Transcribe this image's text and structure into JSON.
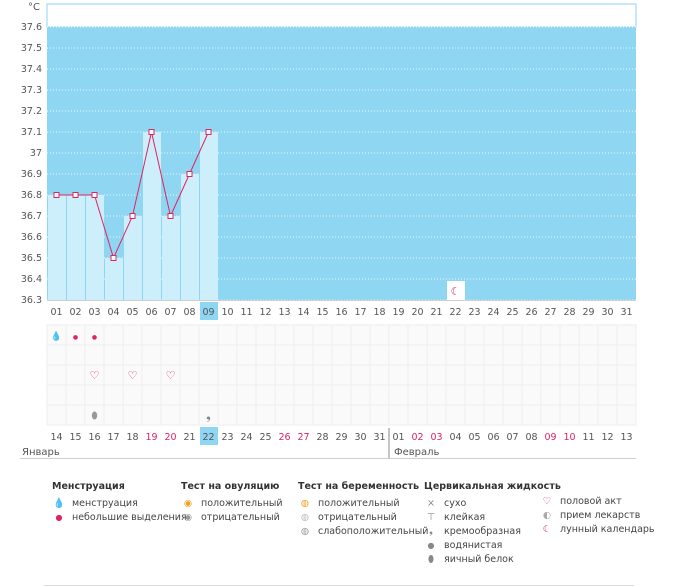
{
  "chart_data": {
    "type": "line",
    "unit_label": "°C",
    "y_ticks": [
      "37.6",
      "37.5",
      "37.4",
      "37.3",
      "37.2",
      "37.1",
      "37",
      "36.9",
      "36.8",
      "36.7",
      "36.6",
      "36.5",
      "36.4",
      "36.3"
    ],
    "ylim": [
      36.3,
      37.7
    ],
    "cycle_days": [
      "01",
      "02",
      "03",
      "04",
      "05",
      "06",
      "07",
      "08",
      "09",
      "10",
      "11",
      "12",
      "13",
      "14",
      "15",
      "16",
      "17",
      "18",
      "19",
      "20",
      "21",
      "22",
      "23",
      "24",
      "25",
      "26",
      "27",
      "28",
      "29",
      "30",
      "31"
    ],
    "temperatures": [
      36.8,
      36.8,
      36.8,
      36.5,
      36.7,
      37.1,
      36.7,
      36.9,
      37.1
    ],
    "current_day_index": 8,
    "moon_day_index": 21,
    "calendar_dates": [
      "14",
      "15",
      "16",
      "17",
      "18",
      "19",
      "20",
      "21",
      "22",
      "23",
      "24",
      "25",
      "26",
      "27",
      "28",
      "29",
      "30",
      "31",
      "01",
      "02",
      "03",
      "04",
      "05",
      "06",
      "07",
      "08",
      "09",
      "10",
      "11",
      "12",
      "13"
    ],
    "weekend_indices": [
      5,
      6,
      12,
      13,
      19,
      20,
      26,
      27
    ],
    "months": [
      "Январь",
      "Февраль"
    ],
    "menstruation_days": [
      {
        "index": 0,
        "kind": "menstruation"
      },
      {
        "index": 1,
        "kind": "light"
      },
      {
        "index": 2,
        "kind": "light"
      }
    ],
    "intercourse_days": [
      2,
      4,
      6
    ],
    "fluid_days": [
      {
        "index": 2,
        "kind": "egg-white"
      },
      {
        "index": 8,
        "kind": "creamy"
      }
    ]
  },
  "legend": {
    "menstruation": {
      "title": "Менструация",
      "items": [
        "менструация",
        "небольшие выделения"
      ]
    },
    "ovulation_test": {
      "title": "Тест на овуляцию",
      "items": [
        "положительный",
        "отрицательный"
      ]
    },
    "pregnancy_test": {
      "title": "Тест на беременность",
      "items": [
        "положительный",
        "отрицательный",
        "слабоположительный"
      ]
    },
    "cervical_fluid": {
      "title": "Цервикальная жидкость",
      "items": [
        "сухо",
        "клейкая",
        "кремообразная",
        "водянистая",
        "яичный белок"
      ]
    },
    "other": {
      "items": [
        "половой акт",
        "прием лекарств",
        "лунный календарь"
      ]
    }
  },
  "colors": {
    "blue": "#8fd6f3",
    "bar": "#cdeefb",
    "line": "#e0245e",
    "weekend": "#e0245e",
    "highlight": "#8fd6f3"
  }
}
